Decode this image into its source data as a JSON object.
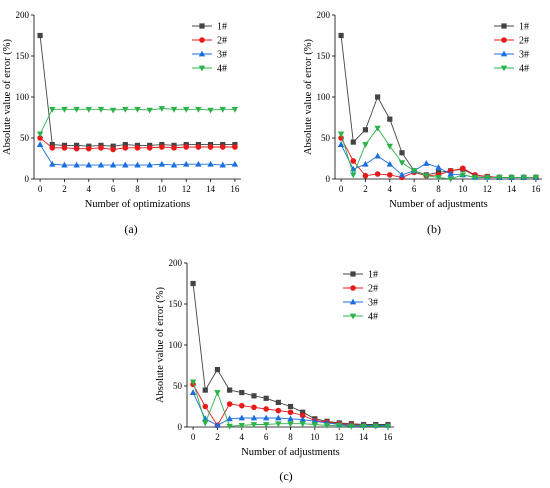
{
  "figure": {
    "panel_labels": [
      "(a)",
      "(b)",
      "(c)"
    ],
    "colors": {
      "1#": "#444444",
      "2#": "#e8191a",
      "3#": "#1a6fe0",
      "4#": "#2bb34a"
    },
    "markers": {
      "1#": "square",
      "2#": "circle",
      "3#": "triangle-up",
      "4#": "triangle-down"
    }
  },
  "chart_data": [
    {
      "type": "line",
      "panel": "(a)",
      "xlabel": "Number of optimizations",
      "ylabel": "Absolute value of error (%)",
      "xlim": [
        -0.5,
        16.5
      ],
      "ylim": [
        0,
        200
      ],
      "xticks": [
        0,
        2,
        4,
        6,
        8,
        10,
        12,
        14,
        16
      ],
      "yticks": [
        0,
        50,
        100,
        150,
        200
      ],
      "legend": "top-right",
      "x": [
        0,
        1,
        2,
        3,
        4,
        5,
        6,
        7,
        8,
        9,
        10,
        11,
        12,
        13,
        14,
        15,
        16
      ],
      "series": [
        {
          "name": "1#",
          "values": [
            175,
            42,
            41,
            41,
            40,
            41,
            40,
            42,
            41,
            41,
            42,
            41,
            42,
            42,
            42,
            42,
            42
          ]
        },
        {
          "name": "2#",
          "values": [
            50,
            38,
            38,
            37,
            37,
            38,
            36,
            38,
            38,
            38,
            39,
            38,
            39,
            39,
            39,
            39,
            39
          ]
        },
        {
          "name": "3#",
          "values": [
            42,
            18,
            17,
            17,
            17,
            17,
            17,
            17,
            17,
            17,
            18,
            17,
            18,
            18,
            18,
            17,
            18
          ]
        },
        {
          "name": "4#",
          "values": [
            55,
            85,
            85,
            85,
            85,
            85,
            84,
            85,
            85,
            84,
            86,
            85,
            85,
            85,
            84,
            85,
            85
          ]
        }
      ]
    },
    {
      "type": "line",
      "panel": "(b)",
      "xlabel": "Number of adjustments",
      "ylabel": "Absolute value of error (%)",
      "xlim": [
        -0.5,
        16.5
      ],
      "ylim": [
        0,
        200
      ],
      "xticks": [
        0,
        2,
        4,
        6,
        8,
        10,
        12,
        14,
        16
      ],
      "yticks": [
        0,
        50,
        100,
        150,
        200
      ],
      "legend": "top-right",
      "x": [
        0,
        1,
        2,
        3,
        4,
        5,
        6,
        7,
        8,
        9,
        10,
        11,
        12,
        13,
        14,
        15,
        16
      ],
      "series": [
        {
          "name": "1#",
          "values": [
            175,
            45,
            60,
            100,
            73,
            32,
            10,
            5,
            8,
            10,
            12,
            4,
            3,
            2,
            2,
            2,
            2
          ]
        },
        {
          "name": "2#",
          "values": [
            50,
            22,
            4,
            6,
            5,
            2,
            8,
            4,
            5,
            10,
            13,
            5,
            3,
            2,
            2,
            2,
            2
          ]
        },
        {
          "name": "3#",
          "values": [
            42,
            12,
            18,
            28,
            18,
            5,
            10,
            19,
            14,
            6,
            5,
            2,
            2,
            2,
            2,
            2,
            2
          ]
        },
        {
          "name": "4#",
          "values": [
            55,
            5,
            42,
            62,
            40,
            20,
            10,
            4,
            2,
            0,
            5,
            2,
            2,
            2,
            2,
            2,
            2
          ]
        }
      ]
    },
    {
      "type": "line",
      "panel": "(c)",
      "xlabel": "Number of adjustments",
      "ylabel": "Absolute value of error (%)",
      "xlim": [
        -0.5,
        16.5
      ],
      "ylim": [
        0,
        200
      ],
      "xticks": [
        0,
        2,
        4,
        6,
        8,
        10,
        12,
        14,
        16
      ],
      "yticks": [
        0,
        50,
        100,
        150,
        200
      ],
      "legend": "top-right",
      "x": [
        0,
        1,
        2,
        3,
        4,
        5,
        6,
        7,
        8,
        9,
        10,
        11,
        12,
        13,
        14,
        15,
        16
      ],
      "series": [
        {
          "name": "1#",
          "values": [
            175,
            45,
            70,
            45,
            42,
            38,
            35,
            30,
            25,
            18,
            10,
            7,
            5,
            4,
            3,
            3,
            3
          ]
        },
        {
          "name": "2#",
          "values": [
            52,
            25,
            2,
            28,
            26,
            24,
            22,
            20,
            18,
            14,
            8,
            6,
            4,
            3,
            2,
            2,
            2
          ]
        },
        {
          "name": "3#",
          "values": [
            42,
            10,
            2,
            10,
            11,
            11,
            11,
            11,
            10,
            9,
            7,
            5,
            3,
            2,
            2,
            2,
            2
          ]
        },
        {
          "name": "4#",
          "values": [
            55,
            5,
            42,
            1,
            2,
            3,
            3,
            4,
            4,
            4,
            3,
            2,
            2,
            1,
            1,
            1,
            1
          ]
        }
      ]
    }
  ]
}
